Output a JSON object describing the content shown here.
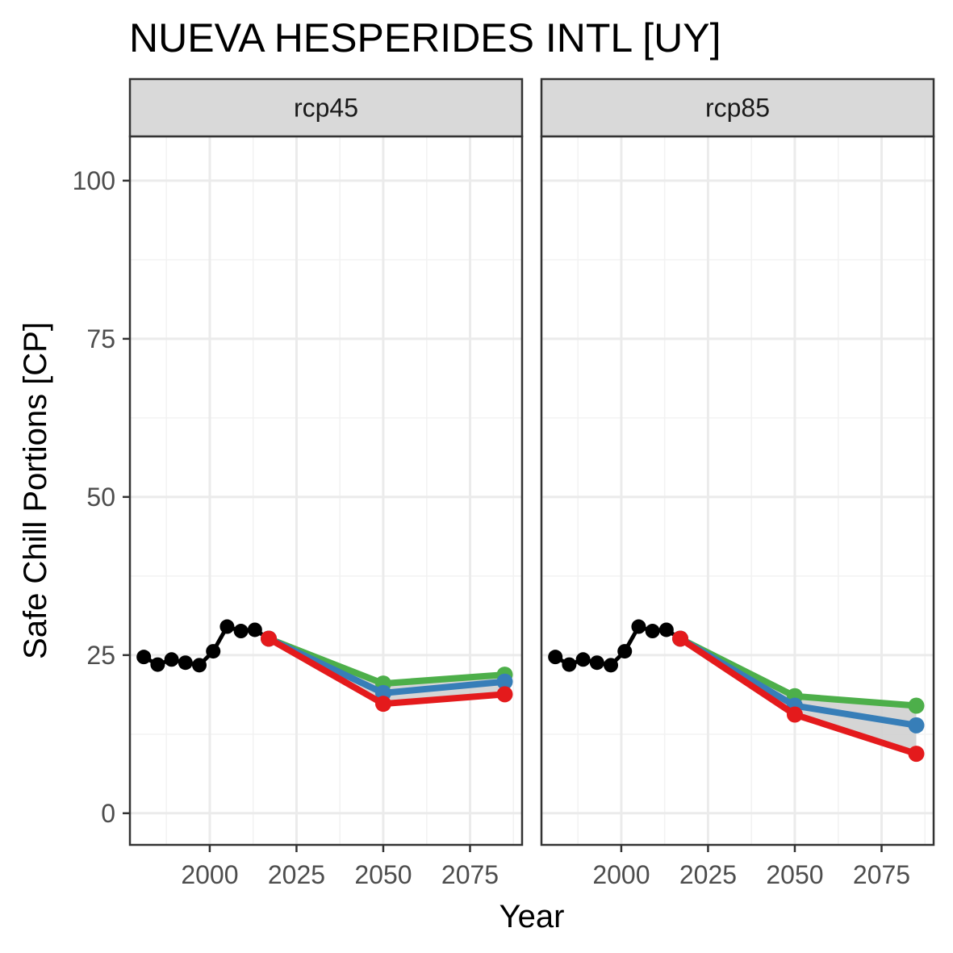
{
  "chart_data": {
    "type": "line",
    "title": "NUEVA HESPERIDES INTL [UY]",
    "xlabel": "Year",
    "ylabel": "Safe Chill Portions [CP]",
    "xlim": [
      1977,
      2090
    ],
    "ylim": [
      -5,
      107
    ],
    "x_ticks": [
      2000,
      2025,
      2050,
      2075
    ],
    "y_ticks": [
      0,
      25,
      50,
      75,
      100
    ],
    "grid": true,
    "colors": {
      "historic": "#000000",
      "high": "#4daf4a",
      "mid": "#377eb8",
      "low": "#e41a1c",
      "ribbon": "#d0d0d0",
      "strip_fill": "#d9d9d9"
    },
    "facets": [
      {
        "label": "rcp45",
        "historic": {
          "x": [
            1981,
            1985,
            1989,
            1993,
            1997,
            2001,
            2005,
            2009,
            2013,
            2017
          ],
          "y": [
            24.7,
            23.5,
            24.3,
            23.8,
            23.4,
            25.6,
            29.5,
            28.8,
            29.0,
            27.6
          ]
        },
        "scenario_x": [
          2017,
          2050,
          2085
        ],
        "series": [
          {
            "values": [
              27.6,
              20.5,
              21.9
            ],
            "color": "#4daf4a"
          },
          {
            "values": [
              27.6,
              19.0,
              20.8
            ],
            "color": "#377eb8"
          },
          {
            "values": [
              27.6,
              17.3,
              18.8
            ],
            "color": "#e41a1c"
          }
        ]
      },
      {
        "label": "rcp85",
        "historic": {
          "x": [
            1981,
            1985,
            1989,
            1993,
            1997,
            2001,
            2005,
            2009,
            2013,
            2017
          ],
          "y": [
            24.7,
            23.5,
            24.3,
            23.8,
            23.4,
            25.6,
            29.5,
            28.8,
            29.0,
            27.6
          ]
        },
        "scenario_x": [
          2017,
          2050,
          2085
        ],
        "series": [
          {
            "values": [
              27.6,
              18.5,
              17.0
            ],
            "color": "#4daf4a"
          },
          {
            "values": [
              27.6,
              17.0,
              13.9
            ],
            "color": "#377eb8"
          },
          {
            "values": [
              27.6,
              15.6,
              9.4
            ],
            "color": "#e41a1c"
          }
        ]
      }
    ]
  }
}
